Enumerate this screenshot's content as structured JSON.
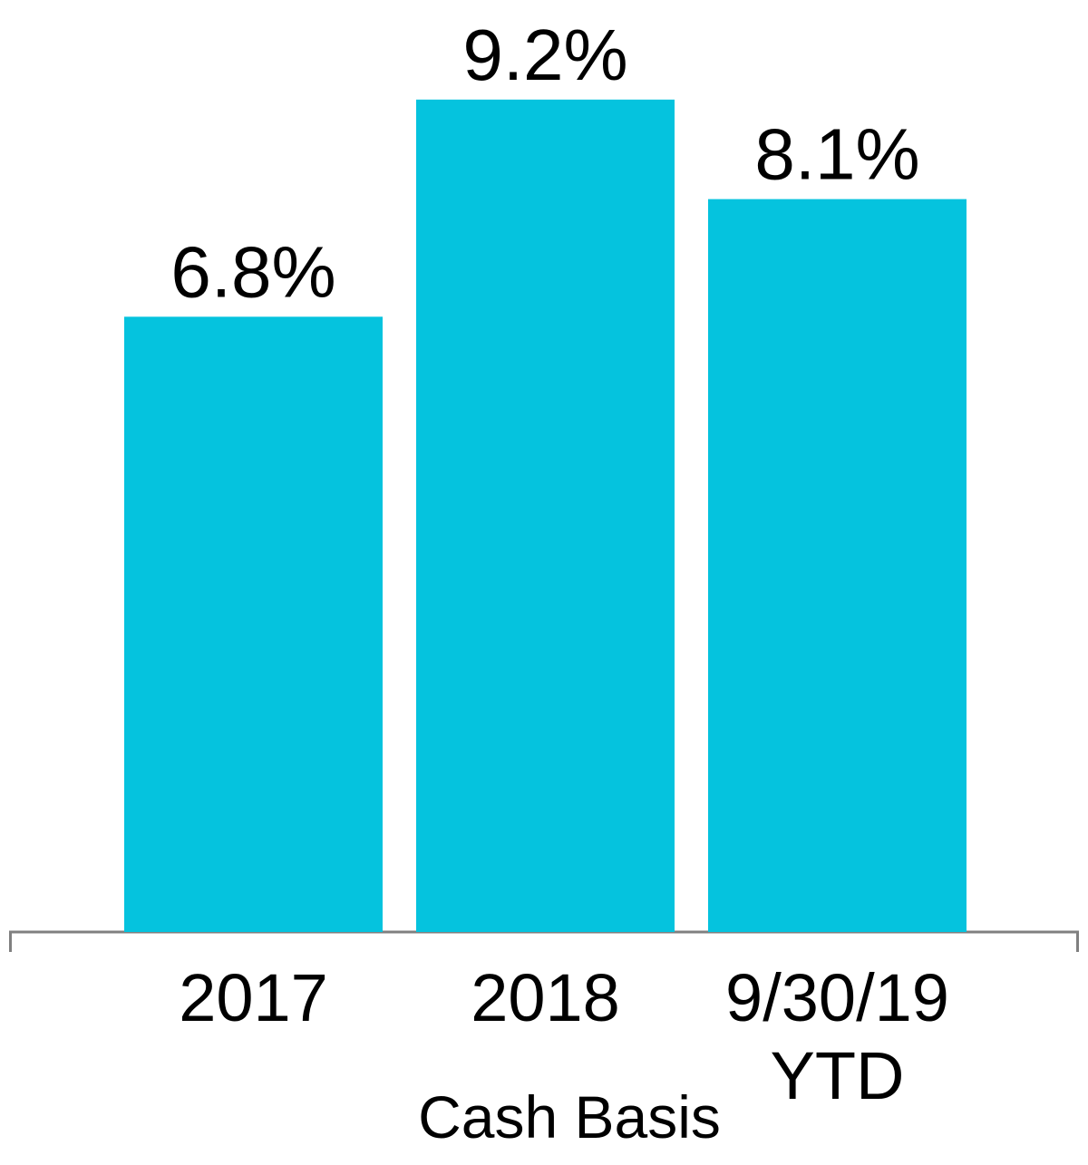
{
  "chart_data": {
    "type": "bar",
    "x_label": "Cash Basis",
    "categories": [
      "2017",
      "2018",
      "9/30/19 YTD"
    ],
    "values": [
      6.8,
      9.2,
      8.1
    ],
    "value_labels": [
      "6.8%",
      "9.2%",
      "8.1%"
    ],
    "color": "#05c3de",
    "ylim": [
      0,
      10
    ]
  }
}
